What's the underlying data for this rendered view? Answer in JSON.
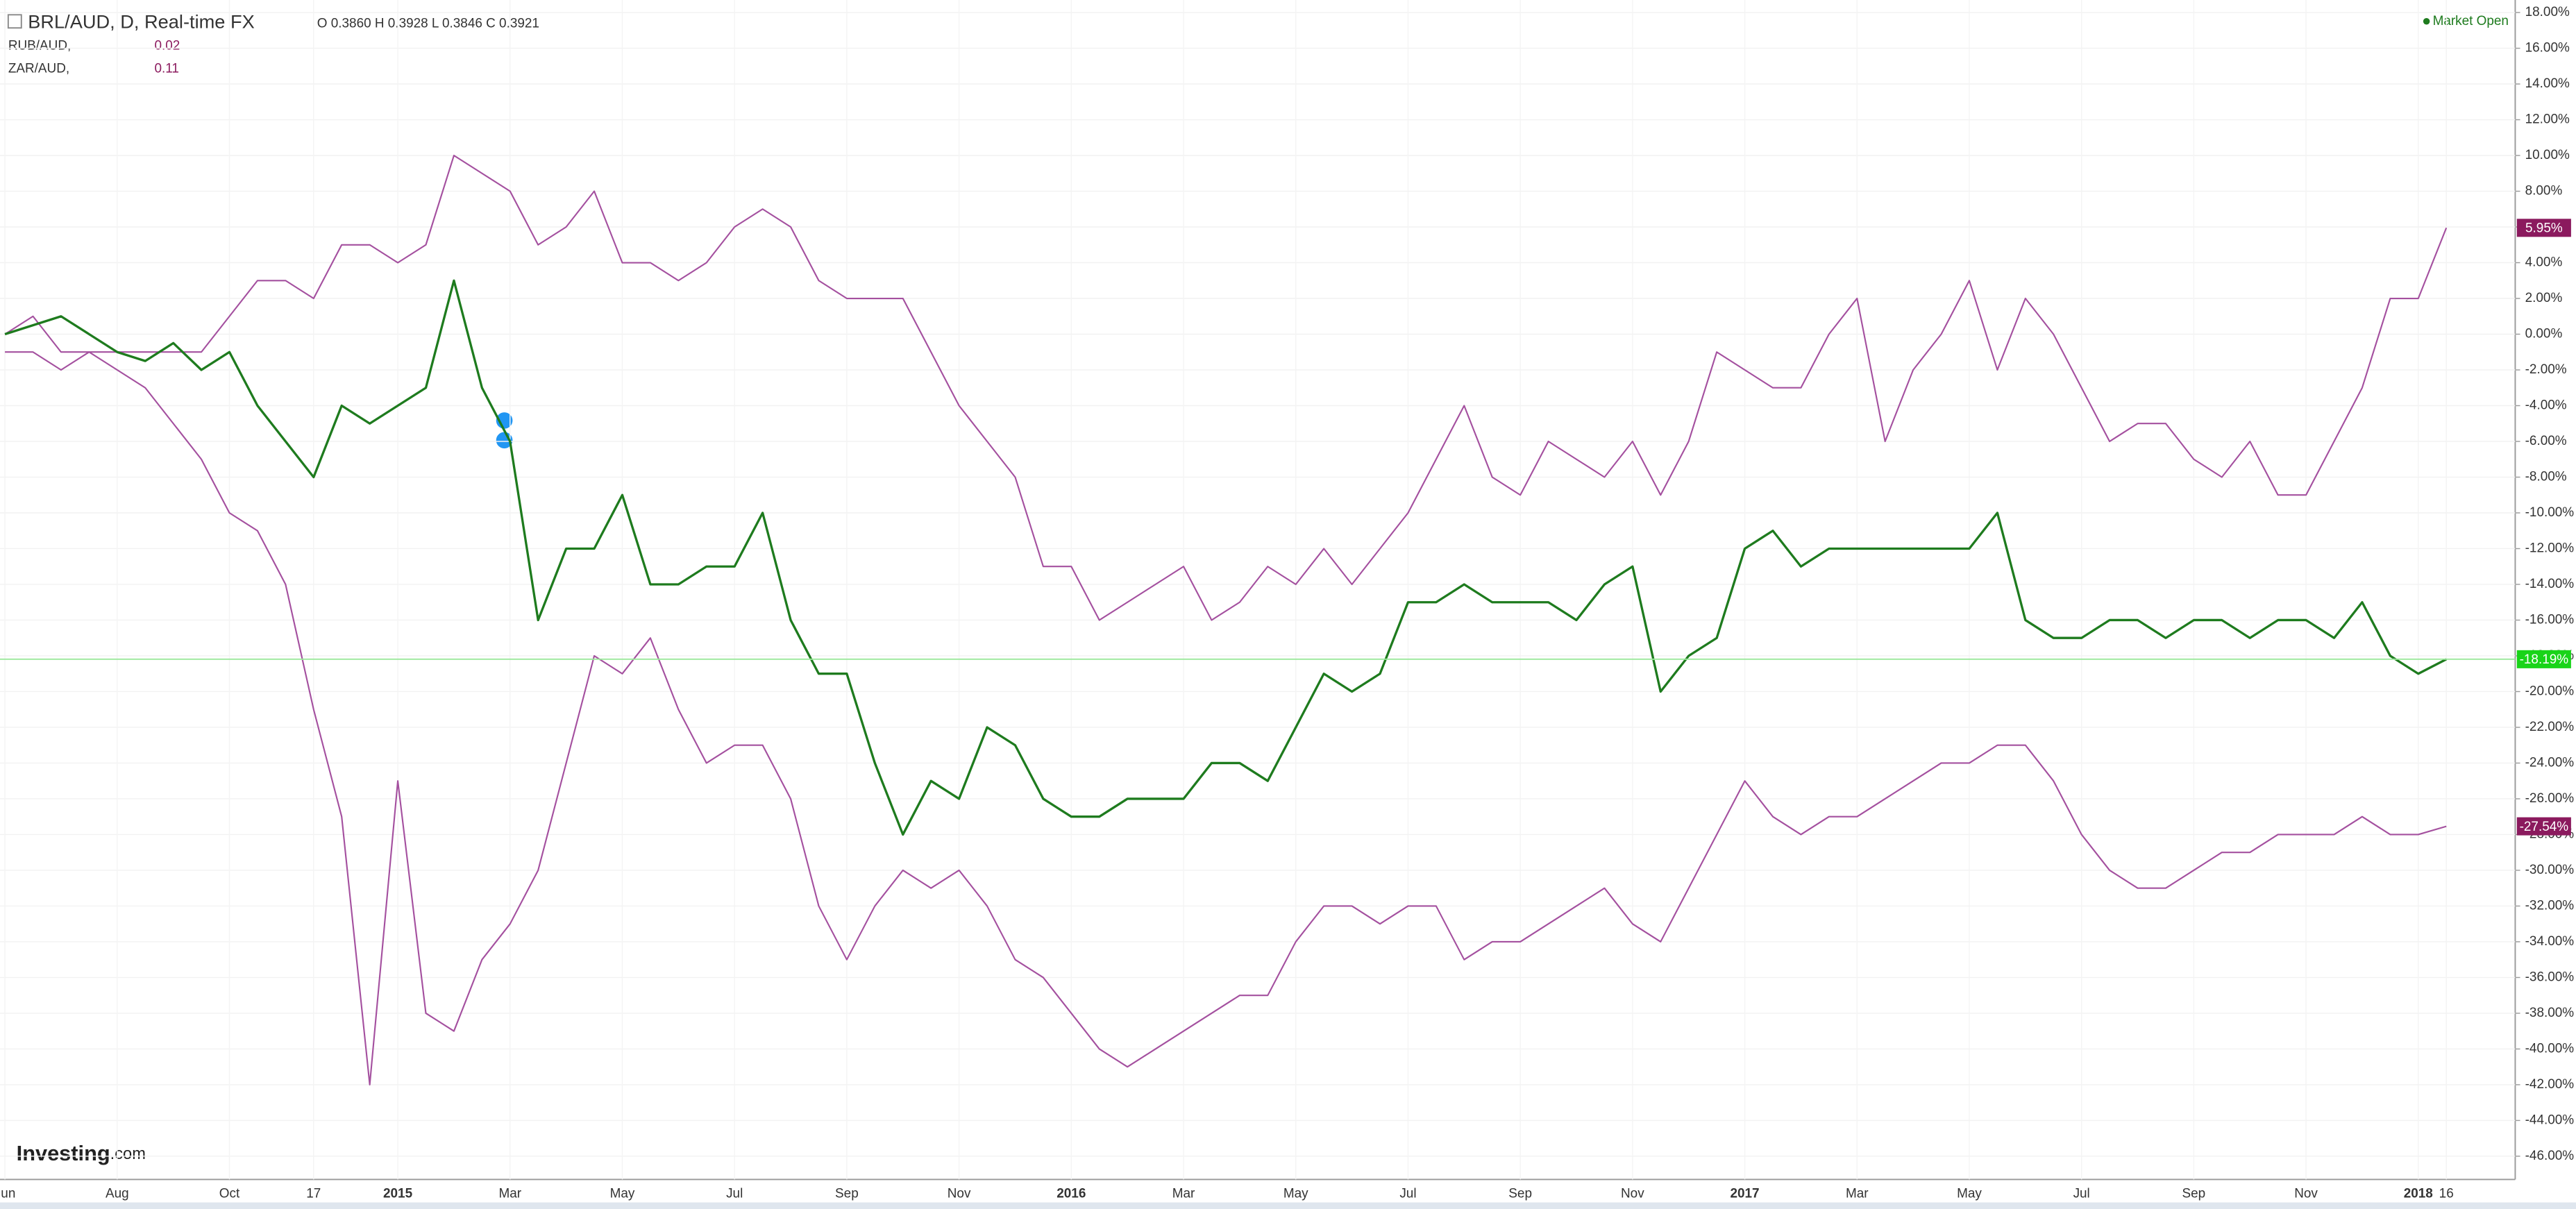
{
  "chart_data": {
    "type": "line",
    "title": "BRL/AUD, D, Real-time FX",
    "ohlc": "O 0.3860 H 0.3928 L 0.3846 C 0.3921",
    "market_status": "Market Open",
    "watermark": [
      "Investing",
      ".com"
    ],
    "categories": [
      "Jun",
      null,
      null,
      null,
      "Aug",
      null,
      null,
      null,
      "Oct",
      null,
      null,
      "17",
      null,
      null,
      "2015",
      null,
      null,
      null,
      "Mar",
      null,
      null,
      null,
      "May",
      null,
      null,
      null,
      "Jul",
      null,
      null,
      null,
      "Sep",
      null,
      null,
      null,
      "Nov",
      null,
      null,
      null,
      "2016",
      null,
      null,
      null,
      "Mar",
      null,
      null,
      null,
      "May",
      null,
      null,
      null,
      "Jul",
      null,
      null,
      null,
      "Sep",
      null,
      null,
      null,
      "Nov",
      null,
      null,
      null,
      "2017",
      null,
      null,
      null,
      "Mar",
      null,
      null,
      null,
      "May",
      null,
      null,
      null,
      "Jul",
      null,
      null,
      null,
      "Sep",
      null,
      null,
      null,
      "Nov",
      null,
      null,
      null,
      "2018",
      "16"
    ],
    "series": [
      {
        "color": "#1e7b1e",
        "last_value_label": "-18.19%",
        "label_color": "#19d419",
        "values": [
          0,
          0.5,
          1,
          0,
          -1,
          -1.5,
          -0.5,
          -2,
          -1,
          -4,
          -6,
          -8,
          -4,
          -5,
          -4,
          -3,
          3,
          -3,
          -6,
          -16,
          -12,
          -12,
          -9,
          -14,
          -14,
          -13,
          -13,
          -10,
          -16,
          -19,
          -19,
          -24,
          -28,
          -25,
          -26,
          -22,
          -23,
          -26,
          -27,
          -27,
          -26,
          -26,
          -26,
          -24,
          -24,
          -25,
          -22,
          -19,
          -20,
          -19,
          -15,
          -15,
          -14,
          -15,
          -15,
          -15,
          -16,
          -14,
          -13,
          -20,
          -18,
          -17,
          -12,
          -11,
          -13,
          -12,
          -12,
          -12,
          -12,
          -12,
          -12,
          -10,
          -16,
          -17,
          -17,
          -16,
          -16,
          -17,
          -16,
          -16,
          -17,
          -16,
          -16,
          -17,
          -15,
          -18,
          -19,
          -18.19
        ]
      },
      {
        "name": "RUB/AUD,",
        "legend_value": "0.02",
        "color": "#a4509f",
        "last_value_label": "-27.54%",
        "label_color": "#8b1a5e",
        "values": [
          -1,
          -1,
          -2,
          -1,
          -2,
          -3,
          -5,
          -7,
          -10,
          -11,
          -14,
          -21,
          -27,
          -42,
          -25,
          -38,
          -39,
          -35,
          -33,
          -30,
          -24,
          -18,
          -19,
          -17,
          -21,
          -24,
          -23,
          -23,
          -26,
          -32,
          -35,
          -32,
          -30,
          -31,
          -30,
          -32,
          -35,
          -36,
          -38,
          -40,
          -41,
          -40,
          -39,
          -38,
          -37,
          -37,
          -34,
          -32,
          -32,
          -33,
          -32,
          -32,
          -35,
          -34,
          -34,
          -33,
          -32,
          -31,
          -33,
          -34,
          -31,
          -28,
          -25,
          -27,
          -28,
          -27,
          -27,
          -26,
          -25,
          -24,
          -24,
          -23,
          -23,
          -25,
          -28,
          -30,
          -31,
          -31,
          -30,
          -29,
          -29,
          -28,
          -28,
          -28,
          -27,
          -28,
          -28,
          -27.54
        ]
      },
      {
        "name": "ZAR/AUD,",
        "legend_value": "0.11",
        "color": "#a4509f",
        "last_value_label": "5.95%",
        "label_color": "#8b1a5e",
        "values": [
          0,
          1,
          -1,
          -1,
          -1,
          -1,
          -1,
          -1,
          1,
          3,
          3,
          2,
          5,
          5,
          4,
          5,
          10,
          9,
          8,
          5,
          6,
          8,
          4,
          4,
          3,
          4,
          6,
          7,
          6,
          3,
          2,
          2,
          2,
          -1,
          -4,
          -6,
          -8,
          -13,
          -13,
          -16,
          -15,
          -14,
          -13,
          -16,
          -15,
          -13,
          -14,
          -12,
          -14,
          -12,
          -10,
          -7,
          -4,
          -8,
          -9,
          -6,
          -7,
          -8,
          -6,
          -9,
          -6,
          -1,
          -2,
          -3,
          -3,
          0,
          2,
          -6,
          -2,
          0,
          3,
          -2,
          2,
          0,
          -3,
          -6,
          -5,
          -5,
          -7,
          -8,
          -6,
          -9,
          -9,
          -6,
          -3,
          2,
          2,
          5.95
        ]
      }
    ],
    "ylim": [
      -47.3,
      18.7
    ],
    "yticks": [
      {
        "value": 18,
        "label": "18.00%"
      },
      {
        "value": 16,
        "label": "16.00%"
      },
      {
        "value": 14,
        "label": "14.00%"
      },
      {
        "value": 12,
        "label": "12.00%"
      },
      {
        "value": 10,
        "label": "10.00%"
      },
      {
        "value": 8,
        "label": "8.00%"
      },
      {
        "value": 6,
        "label": "6.00%"
      },
      {
        "value": 4,
        "label": "4.00%"
      },
      {
        "value": 2,
        "label": "2.00%"
      },
      {
        "value": 0,
        "label": "0.00%"
      },
      {
        "value": -2,
        "label": "-2.00%"
      },
      {
        "value": -4,
        "label": "-4.00%"
      },
      {
        "value": -6,
        "label": "-6.00%"
      },
      {
        "value": -8,
        "label": "-8.00%"
      },
      {
        "value": -10,
        "label": "-10.00%"
      },
      {
        "value": -12,
        "label": "-12.00%"
      },
      {
        "value": -14,
        "label": "-14.00%"
      },
      {
        "value": -16,
        "label": "-16.00%"
      },
      {
        "value": -18,
        "label": "-18.00%"
      },
      {
        "value": -20,
        "label": "-20.00%"
      },
      {
        "value": -22,
        "label": "-22.00%"
      },
      {
        "value": -24,
        "label": "-24.00%"
      },
      {
        "value": -26,
        "label": "-26.00%"
      },
      {
        "value": -28,
        "label": "-28.00%"
      },
      {
        "value": -30,
        "label": "-30.00%"
      },
      {
        "value": -32,
        "label": "-32.00%"
      },
      {
        "value": -34,
        "label": "-34.00%"
      },
      {
        "value": -36,
        "label": "-36.00%"
      },
      {
        "value": -38,
        "label": "-38.00%"
      },
      {
        "value": -40,
        "label": "-40.00%"
      },
      {
        "value": -42,
        "label": "-42.00%"
      },
      {
        "value": -44,
        "label": "-44.00%"
      },
      {
        "value": -46,
        "label": "-46.00%"
      }
    ]
  }
}
